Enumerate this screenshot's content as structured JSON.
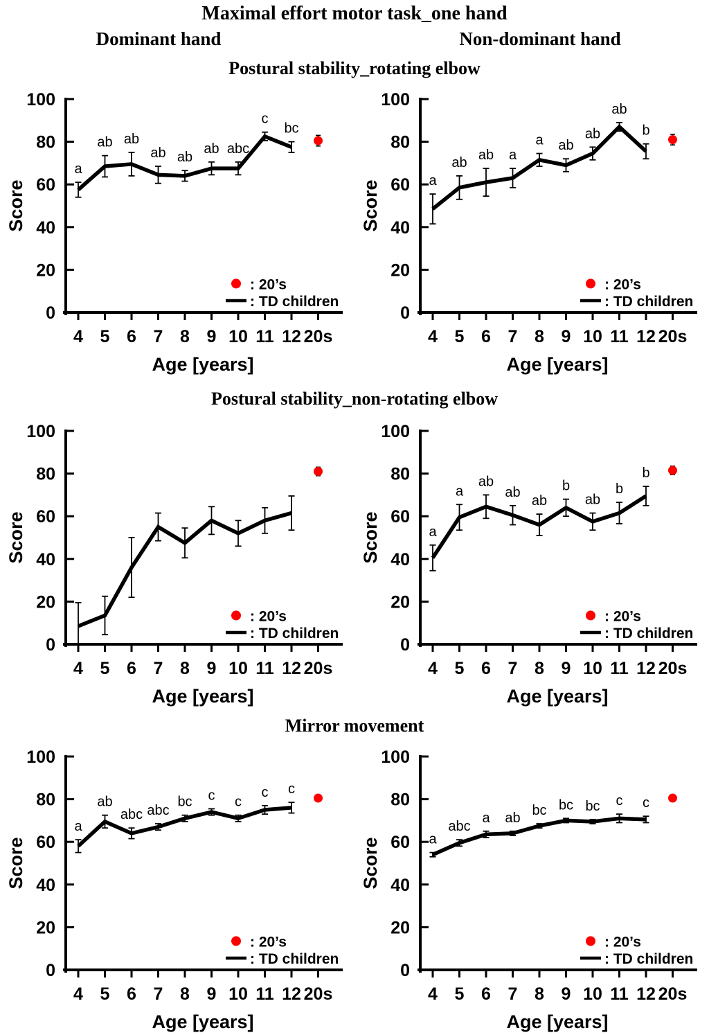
{
  "figure": {
    "title": "Maximal effort motor task_one hand",
    "column_headers": [
      {
        "label": "Dominant hand"
      },
      {
        "label": "Non-dominant hand"
      }
    ],
    "row_titles": [
      "Postural stability_rotating elbow",
      "Postural stability_non-rotating elbow",
      "Mirror movement"
    ]
  },
  "legend": {
    "adult_label": ": 20’s",
    "children_label": ": TD children"
  },
  "colors": {
    "adult_dot": "#ff0000",
    "series_line": "#000000"
  },
  "axes": {
    "ylabel": "Score",
    "xlabel": "Age [years]",
    "ylim": [
      0,
      100
    ],
    "yticks": [
      0,
      20,
      40,
      60,
      80,
      100
    ],
    "xticklabels": [
      "4",
      "5",
      "6",
      "7",
      "8",
      "9",
      "10",
      "11",
      "12",
      "20s"
    ]
  },
  "chart_data": [
    {
      "type": "line",
      "row_title": "Postural stability_rotating elbow",
      "hand": "Dominant hand",
      "x": [
        4,
        5,
        6,
        7,
        8,
        9,
        10,
        11,
        12
      ],
      "values": [
        57.5,
        68.5,
        69.5,
        64.5,
        64,
        67.5,
        67.5,
        82.5,
        77.5
      ],
      "errors": [
        3.5,
        5,
        5.5,
        4,
        2.5,
        3,
        3,
        2,
        2.5
      ],
      "sig_letters": [
        "a",
        "ab",
        "ab",
        "ab",
        "ab",
        "ab",
        "abc",
        "c",
        "bc"
      ],
      "adult": {
        "label": "20s",
        "value": 80.5,
        "error": 2.5
      },
      "ylabel": "Score",
      "xlabel": "Age [years]",
      "ylim": [
        0,
        100
      ]
    },
    {
      "type": "line",
      "row_title": "Postural stability_rotating elbow",
      "hand": "Non-dominant hand",
      "x": [
        4,
        5,
        6,
        7,
        8,
        9,
        10,
        11,
        12
      ],
      "values": [
        48.5,
        58.5,
        61,
        63,
        71.5,
        69,
        74.5,
        87,
        75.5
      ],
      "errors": [
        7,
        5.5,
        6.5,
        4.5,
        3,
        3,
        3,
        2,
        3.5
      ],
      "sig_letters": [
        "a",
        "ab",
        "ab",
        "a",
        "a",
        "ab",
        "ab",
        "ab",
        "b"
      ],
      "adult": {
        "label": "20s",
        "value": 81,
        "error": 2.5
      },
      "ylabel": "Score",
      "xlabel": "Age [years]",
      "ylim": [
        0,
        100
      ]
    },
    {
      "type": "line",
      "row_title": "Postural stability_non-rotating elbow",
      "hand": "Dominant hand",
      "x": [
        4,
        5,
        6,
        7,
        8,
        9,
        10,
        11,
        12
      ],
      "values": [
        8.5,
        13.5,
        36,
        55,
        47.5,
        58,
        52,
        58,
        61.5
      ],
      "errors": [
        11,
        9,
        14,
        6.5,
        7,
        6.5,
        6,
        6,
        8
      ],
      "sig_letters": [],
      "adult": {
        "label": "20s",
        "value": 81,
        "error": 2
      },
      "ylabel": "Score",
      "xlabel": "Age [years]",
      "ylim": [
        0,
        100
      ]
    },
    {
      "type": "line",
      "row_title": "Postural stability_non-rotating elbow",
      "hand": "Non-dominant hand",
      "x": [
        4,
        5,
        6,
        7,
        8,
        9,
        10,
        11,
        12
      ],
      "values": [
        40.5,
        59.5,
        64.5,
        60.5,
        56,
        64,
        57.5,
        61.5,
        69.5
      ],
      "errors": [
        6,
        6,
        5.5,
        4.5,
        5,
        4,
        4,
        5,
        4.5
      ],
      "sig_letters": [
        "a",
        "a",
        "ab",
        "ab",
        "ab",
        "b",
        "ab",
        "b",
        "b"
      ],
      "adult": {
        "label": "20s",
        "value": 81.5,
        "error": 2
      },
      "ylabel": "Score",
      "xlabel": "Age [years]",
      "ylim": [
        0,
        100
      ]
    },
    {
      "type": "line",
      "row_title": "Mirror movement",
      "hand": "Dominant hand",
      "x": [
        4,
        5,
        6,
        7,
        8,
        9,
        10,
        11,
        12
      ],
      "values": [
        58,
        69.5,
        64,
        67,
        71,
        74,
        71,
        75,
        76
      ],
      "errors": [
        3,
        3,
        2.5,
        1.5,
        1.5,
        1.5,
        1.5,
        2,
        2.5
      ],
      "sig_letters": [
        "a",
        "ab",
        "abc",
        "abc",
        "bc",
        "c",
        "c",
        "c",
        "c"
      ],
      "adult": {
        "label": "20s",
        "value": 80.5,
        "error": 1
      },
      "ylabel": "Score",
      "xlabel": "Age [years]",
      "ylim": [
        0,
        100
      ]
    },
    {
      "type": "line",
      "row_title": "Mirror movement",
      "hand": "Non-dominant hand",
      "x": [
        4,
        5,
        6,
        7,
        8,
        9,
        10,
        11,
        12
      ],
      "values": [
        54,
        59.5,
        63.5,
        64,
        67.5,
        70,
        69.5,
        71,
        70.5
      ],
      "errors": [
        1,
        1.5,
        1.5,
        1,
        1,
        1,
        1,
        2,
        1.5
      ],
      "sig_letters": [
        "a",
        "abc",
        "a",
        "ab",
        "bc",
        "bc",
        "bc",
        "c",
        "c"
      ],
      "adult": {
        "label": "20s",
        "value": 80.5,
        "error": 1.5
      },
      "ylabel": "Score",
      "xlabel": "Age [years]",
      "ylim": [
        0,
        100
      ]
    }
  ]
}
